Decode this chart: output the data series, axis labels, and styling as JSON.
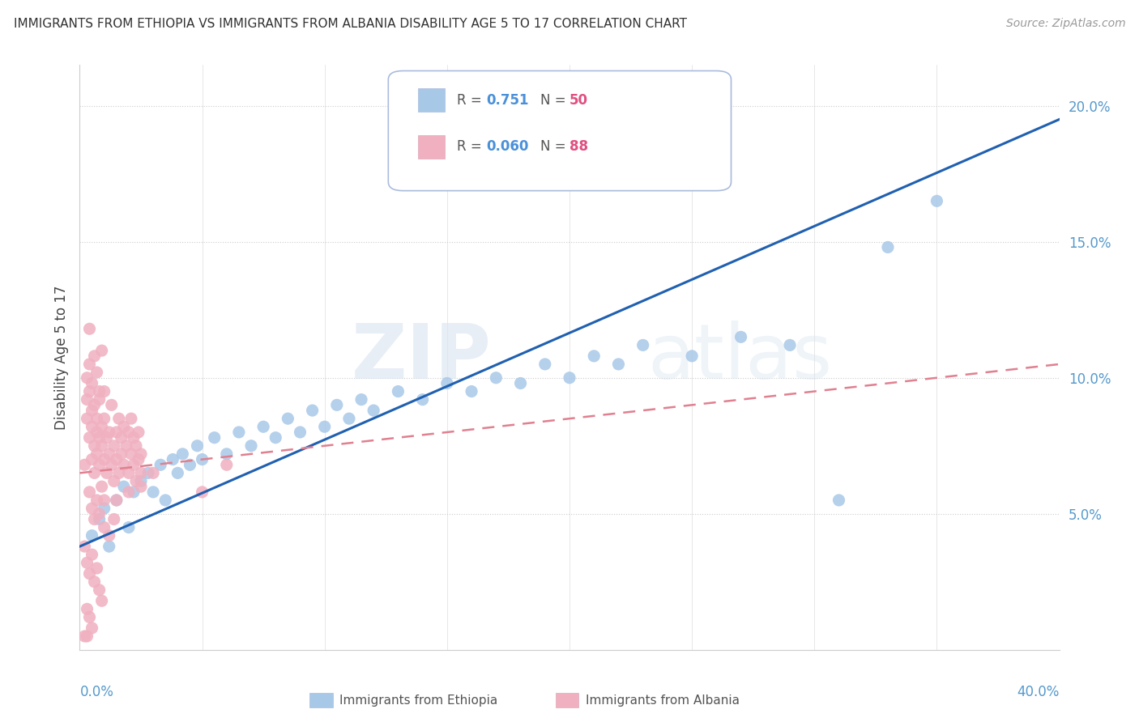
{
  "title": "IMMIGRANTS FROM ETHIOPIA VS IMMIGRANTS FROM ALBANIA DISABILITY AGE 5 TO 17 CORRELATION CHART",
  "source": "Source: ZipAtlas.com",
  "ylabel": "Disability Age 5 to 17",
  "xlim": [
    0.0,
    0.4
  ],
  "ylim": [
    0.0,
    0.215
  ],
  "ytick_labels": [
    "5.0%",
    "10.0%",
    "15.0%",
    "20.0%"
  ],
  "ytick_values": [
    0.05,
    0.1,
    0.15,
    0.2
  ],
  "ethiopia_color": "#a8c8e8",
  "albania_color": "#f0b0c0",
  "ethiopia_line_color": "#2060b0",
  "albania_line_color": "#e08090",
  "ethiopia_R": 0.751,
  "ethiopia_N": 50,
  "albania_R": 0.06,
  "albania_N": 88,
  "watermark_zip": "ZIP",
  "watermark_atlas": "atlas",
  "legend_R_color": "#4a90d9",
  "legend_N_color": "#e05080",
  "ethiopia_scatter": [
    [
      0.005,
      0.042
    ],
    [
      0.008,
      0.048
    ],
    [
      0.01,
      0.052
    ],
    [
      0.012,
      0.038
    ],
    [
      0.015,
      0.055
    ],
    [
      0.018,
      0.06
    ],
    [
      0.02,
      0.045
    ],
    [
      0.022,
      0.058
    ],
    [
      0.025,
      0.062
    ],
    [
      0.028,
      0.065
    ],
    [
      0.03,
      0.058
    ],
    [
      0.033,
      0.068
    ],
    [
      0.035,
      0.055
    ],
    [
      0.038,
      0.07
    ],
    [
      0.04,
      0.065
    ],
    [
      0.042,
      0.072
    ],
    [
      0.045,
      0.068
    ],
    [
      0.048,
      0.075
    ],
    [
      0.05,
      0.07
    ],
    [
      0.055,
      0.078
    ],
    [
      0.06,
      0.072
    ],
    [
      0.065,
      0.08
    ],
    [
      0.07,
      0.075
    ],
    [
      0.075,
      0.082
    ],
    [
      0.08,
      0.078
    ],
    [
      0.085,
      0.085
    ],
    [
      0.09,
      0.08
    ],
    [
      0.095,
      0.088
    ],
    [
      0.1,
      0.082
    ],
    [
      0.105,
      0.09
    ],
    [
      0.11,
      0.085
    ],
    [
      0.115,
      0.092
    ],
    [
      0.12,
      0.088
    ],
    [
      0.13,
      0.095
    ],
    [
      0.14,
      0.092
    ],
    [
      0.15,
      0.098
    ],
    [
      0.16,
      0.095
    ],
    [
      0.17,
      0.1
    ],
    [
      0.18,
      0.098
    ],
    [
      0.19,
      0.105
    ],
    [
      0.2,
      0.1
    ],
    [
      0.21,
      0.108
    ],
    [
      0.22,
      0.105
    ],
    [
      0.23,
      0.112
    ],
    [
      0.25,
      0.108
    ],
    [
      0.27,
      0.115
    ],
    [
      0.29,
      0.112
    ],
    [
      0.31,
      0.055
    ],
    [
      0.33,
      0.148
    ],
    [
      0.35,
      0.165
    ]
  ],
  "albania_scatter": [
    [
      0.002,
      0.068
    ],
    [
      0.003,
      0.085
    ],
    [
      0.003,
      0.092
    ],
    [
      0.004,
      0.078
    ],
    [
      0.004,
      0.095
    ],
    [
      0.005,
      0.07
    ],
    [
      0.005,
      0.082
    ],
    [
      0.005,
      0.088
    ],
    [
      0.006,
      0.075
    ],
    [
      0.006,
      0.09
    ],
    [
      0.006,
      0.065
    ],
    [
      0.007,
      0.08
    ],
    [
      0.007,
      0.072
    ],
    [
      0.007,
      0.085
    ],
    [
      0.008,
      0.078
    ],
    [
      0.008,
      0.092
    ],
    [
      0.008,
      0.068
    ],
    [
      0.009,
      0.075
    ],
    [
      0.009,
      0.082
    ],
    [
      0.009,
      0.06
    ],
    [
      0.01,
      0.07
    ],
    [
      0.01,
      0.085
    ],
    [
      0.01,
      0.055
    ],
    [
      0.011,
      0.078
    ],
    [
      0.011,
      0.065
    ],
    [
      0.012,
      0.072
    ],
    [
      0.012,
      0.08
    ],
    [
      0.013,
      0.068
    ],
    [
      0.013,
      0.09
    ],
    [
      0.014,
      0.075
    ],
    [
      0.014,
      0.062
    ],
    [
      0.015,
      0.08
    ],
    [
      0.015,
      0.07
    ],
    [
      0.016,
      0.085
    ],
    [
      0.016,
      0.065
    ],
    [
      0.017,
      0.078
    ],
    [
      0.017,
      0.072
    ],
    [
      0.018,
      0.082
    ],
    [
      0.018,
      0.068
    ],
    [
      0.019,
      0.075
    ],
    [
      0.02,
      0.08
    ],
    [
      0.02,
      0.065
    ],
    [
      0.021,
      0.072
    ],
    [
      0.021,
      0.085
    ],
    [
      0.022,
      0.068
    ],
    [
      0.022,
      0.078
    ],
    [
      0.023,
      0.075
    ],
    [
      0.023,
      0.062
    ],
    [
      0.024,
      0.07
    ],
    [
      0.024,
      0.08
    ],
    [
      0.025,
      0.065
    ],
    [
      0.025,
      0.072
    ],
    [
      0.003,
      0.1
    ],
    [
      0.004,
      0.105
    ],
    [
      0.005,
      0.098
    ],
    [
      0.006,
      0.108
    ],
    [
      0.007,
      0.102
    ],
    [
      0.008,
      0.095
    ],
    [
      0.009,
      0.11
    ],
    [
      0.01,
      0.095
    ],
    [
      0.004,
      0.058
    ],
    [
      0.005,
      0.052
    ],
    [
      0.006,
      0.048
    ],
    [
      0.007,
      0.055
    ],
    [
      0.008,
      0.05
    ],
    [
      0.01,
      0.045
    ],
    [
      0.012,
      0.042
    ],
    [
      0.014,
      0.048
    ],
    [
      0.002,
      0.038
    ],
    [
      0.003,
      0.032
    ],
    [
      0.004,
      0.028
    ],
    [
      0.005,
      0.035
    ],
    [
      0.006,
      0.025
    ],
    [
      0.007,
      0.03
    ],
    [
      0.008,
      0.022
    ],
    [
      0.009,
      0.018
    ],
    [
      0.003,
      0.015
    ],
    [
      0.004,
      0.012
    ],
    [
      0.005,
      0.008
    ],
    [
      0.003,
      0.005
    ],
    [
      0.015,
      0.055
    ],
    [
      0.02,
      0.058
    ],
    [
      0.025,
      0.06
    ],
    [
      0.03,
      0.065
    ],
    [
      0.004,
      0.118
    ],
    [
      0.002,
      0.005
    ],
    [
      0.06,
      0.068
    ],
    [
      0.05,
      0.058
    ]
  ]
}
